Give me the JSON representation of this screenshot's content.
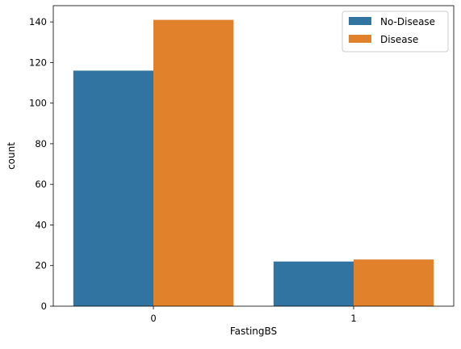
{
  "chart_data": {
    "type": "bar",
    "title": "",
    "xlabel": "FastingBS",
    "ylabel": "count",
    "categories": [
      "0",
      "1"
    ],
    "series": [
      {
        "name": "No-Disease",
        "values": [
          116,
          22
        ]
      },
      {
        "name": "Disease",
        "values": [
          141,
          23
        ]
      }
    ],
    "ylim": [
      0,
      148
    ],
    "yticks": [
      0,
      20,
      40,
      60,
      80,
      100,
      120,
      140
    ],
    "legend_position": "top-right",
    "grid": false,
    "colors": [
      "#3274a1",
      "#e1812c"
    ]
  }
}
